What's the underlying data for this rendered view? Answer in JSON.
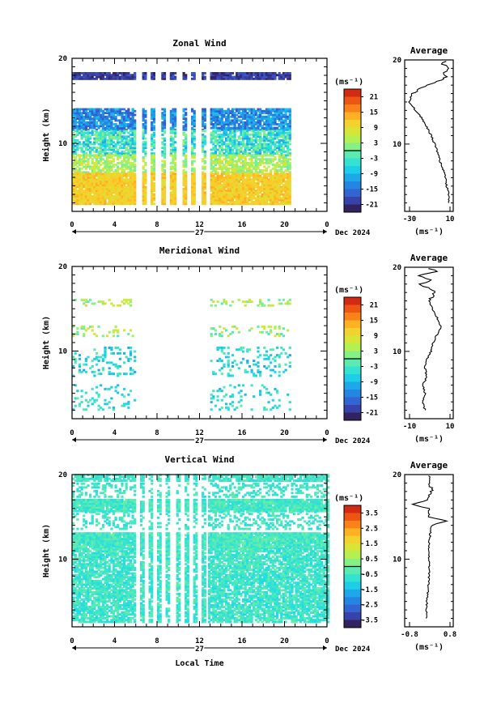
{
  "chart_data": [
    {
      "type": "heatmap",
      "title": "Zonal Wind",
      "ylabel": "Height (km)",
      "yticks": [
        "20",
        "10"
      ],
      "ylim": [
        2,
        20
      ],
      "xticks": [
        "0",
        "4",
        "8",
        "12",
        "16",
        "20",
        "0"
      ],
      "xlim": [
        0,
        24
      ],
      "date_day": "27",
      "date_label": "Dec 2024",
      "colorbar": {
        "unit": "(ms⁻¹)",
        "ticks": [
          "21",
          "15",
          "9",
          "3",
          "-3",
          "-9",
          "-15",
          "-21"
        ],
        "range": [
          -24,
          24
        ]
      },
      "gaps_hours": [
        [
          6.0,
          6.5
        ],
        [
          6.9,
          7.3
        ],
        [
          7.8,
          8.3
        ],
        [
          8.7,
          9.2
        ],
        [
          9.6,
          10.3
        ],
        [
          10.7,
          11.1
        ],
        [
          11.5,
          12.0
        ],
        [
          12.4,
          12.9
        ],
        [
          20.5,
          24.0
        ]
      ],
      "layers": [
        {
          "base": 17.5,
          "top": 18.3,
          "value": -20,
          "noise": 3,
          "fill": 0.95
        },
        {
          "base": 11.5,
          "top": 14.0,
          "value": -13,
          "noise": 5,
          "fill": 0.85
        },
        {
          "base": 8.5,
          "top": 11.5,
          "value": -4,
          "noise": 7,
          "fill": 0.75
        },
        {
          "base": 6.5,
          "top": 8.5,
          "value": 4,
          "noise": 5,
          "fill": 0.7
        },
        {
          "base": 2.8,
          "top": 6.5,
          "value": 11,
          "noise": 3,
          "fill": 0.97
        }
      ],
      "average": {
        "title": "Average",
        "xticks": [
          "-30",
          "10"
        ],
        "xlim": [
          -32,
          12
        ],
        "unit": "(ms⁻¹)",
        "profile": [
          [
            3,
            8
          ],
          [
            4,
            8
          ],
          [
            5,
            6
          ],
          [
            6,
            5
          ],
          [
            7,
            3
          ],
          [
            8,
            0
          ],
          [
            9,
            -2
          ],
          [
            10,
            -5
          ],
          [
            11,
            -8
          ],
          [
            12,
            -12
          ],
          [
            13,
            -16
          ],
          [
            14,
            -22
          ],
          [
            15,
            -28
          ],
          [
            16,
            -25
          ],
          [
            17,
            -12
          ],
          [
            17.6,
            0
          ],
          [
            18,
            6
          ],
          [
            18.5,
            3
          ],
          [
            19,
            9
          ],
          [
            19.5,
            2
          ],
          [
            20,
            7
          ]
        ]
      }
    },
    {
      "type": "heatmap",
      "title": "Meridional Wind",
      "ylabel": "Height (km)",
      "yticks": [
        "20",
        "10"
      ],
      "ylim": [
        2,
        20
      ],
      "xticks": [
        "0",
        "4",
        "8",
        "12",
        "16",
        "20",
        "0"
      ],
      "xlim": [
        0,
        24
      ],
      "date_day": "27",
      "date_label": "Dec 2024",
      "colorbar": {
        "unit": "(ms⁻¹)",
        "ticks": [
          "21",
          "15",
          "9",
          "3",
          "-3",
          "-9",
          "-15",
          "-21"
        ],
        "range": [
          -24,
          24
        ]
      },
      "gaps_hours": [
        [
          6.0,
          12.8
        ],
        [
          20.5,
          24.0
        ]
      ],
      "layers": [
        {
          "base": 15.3,
          "top": 16.0,
          "value": 4,
          "noise": 6,
          "fill": 0.25
        },
        {
          "base": 11.7,
          "top": 13.0,
          "value": 3,
          "noise": 6,
          "fill": 0.2
        },
        {
          "base": 7.0,
          "top": 10.5,
          "value": -6,
          "noise": 5,
          "fill": 0.2
        },
        {
          "base": 3.0,
          "top": 6.0,
          "value": -5,
          "noise": 4,
          "fill": 0.15
        }
      ],
      "average": {
        "title": "Average",
        "xticks": [
          "-10",
          "10"
        ],
        "xlim": [
          -12,
          12
        ],
        "unit": "(ms⁻¹)",
        "profile": [
          [
            3,
            -2
          ],
          [
            4,
            -3
          ],
          [
            5,
            -2
          ],
          [
            6,
            -3
          ],
          [
            7,
            -1
          ],
          [
            8,
            -2
          ],
          [
            9,
            -1
          ],
          [
            10,
            1
          ],
          [
            11,
            2
          ],
          [
            12,
            4
          ],
          [
            13,
            6
          ],
          [
            14,
            4
          ],
          [
            15,
            2
          ],
          [
            16,
            0
          ],
          [
            17,
            3
          ],
          [
            18,
            -4
          ],
          [
            18.5,
            2
          ],
          [
            19,
            -6
          ],
          [
            19.5,
            5
          ],
          [
            20,
            -2
          ]
        ]
      }
    },
    {
      "type": "heatmap",
      "title": "Vertical Wind",
      "ylabel": "Height (km)",
      "yticks": [
        "20",
        "10"
      ],
      "ylim": [
        2,
        20
      ],
      "xticks": [
        "0",
        "4",
        "8",
        "12",
        "16",
        "20",
        "0"
      ],
      "xlim": [
        0,
        24
      ],
      "date_day": "27",
      "date_label": "Dec 2024",
      "xlabel": "Local Time",
      "colorbar": {
        "unit": "(ms⁻¹)",
        "ticks": [
          "3.5",
          "2.5",
          "1.5",
          "0.5",
          "-0.5",
          "-1.5",
          "-2.5",
          "-3.5"
        ],
        "range": [
          -4,
          4
        ]
      },
      "gaps_hours": [
        [
          6.0,
          6.4
        ],
        [
          6.8,
          7.2
        ],
        [
          7.6,
          8.0
        ],
        [
          8.4,
          8.8
        ],
        [
          9.2,
          9.6
        ],
        [
          10.0,
          10.4
        ],
        [
          10.8,
          11.2
        ],
        [
          11.6,
          12.0
        ],
        [
          12.4,
          12.7
        ]
      ],
      "layers": [
        {
          "base": 19.2,
          "top": 20.0,
          "value": -0.6,
          "noise": 0.4,
          "fill": 0.8
        },
        {
          "base": 17.3,
          "top": 19.0,
          "value": -0.6,
          "noise": 0.4,
          "fill": 0.35
        },
        {
          "base": 15.6,
          "top": 17.0,
          "value": -0.5,
          "noise": 0.5,
          "fill": 0.95
        },
        {
          "base": 13.5,
          "top": 15.5,
          "value": -0.6,
          "noise": 0.4,
          "fill": 0.3
        },
        {
          "base": 11.2,
          "top": 13.0,
          "value": -0.5,
          "noise": 0.5,
          "fill": 0.95
        },
        {
          "base": 2.5,
          "top": 11.2,
          "value": -0.6,
          "noise": 0.5,
          "fill": 0.8
        }
      ],
      "average": {
        "title": "Average",
        "xticks": [
          "-0.8",
          "0.8"
        ],
        "xlim": [
          -0.9,
          0.9
        ],
        "unit": "(ms⁻¹)",
        "profile": [
          [
            3,
            -0.1
          ],
          [
            4,
            -0.1
          ],
          [
            6,
            -0.05
          ],
          [
            8,
            0.0
          ],
          [
            10,
            0.0
          ],
          [
            12,
            0.0
          ],
          [
            13,
            0.05
          ],
          [
            14,
            0.1
          ],
          [
            14.5,
            0.65
          ],
          [
            15,
            0.0
          ],
          [
            16,
            0.0
          ],
          [
            16.5,
            -0.6
          ],
          [
            17,
            0.0
          ],
          [
            18,
            0.1
          ],
          [
            19,
            0.05
          ],
          [
            20,
            0.0
          ]
        ]
      }
    }
  ]
}
